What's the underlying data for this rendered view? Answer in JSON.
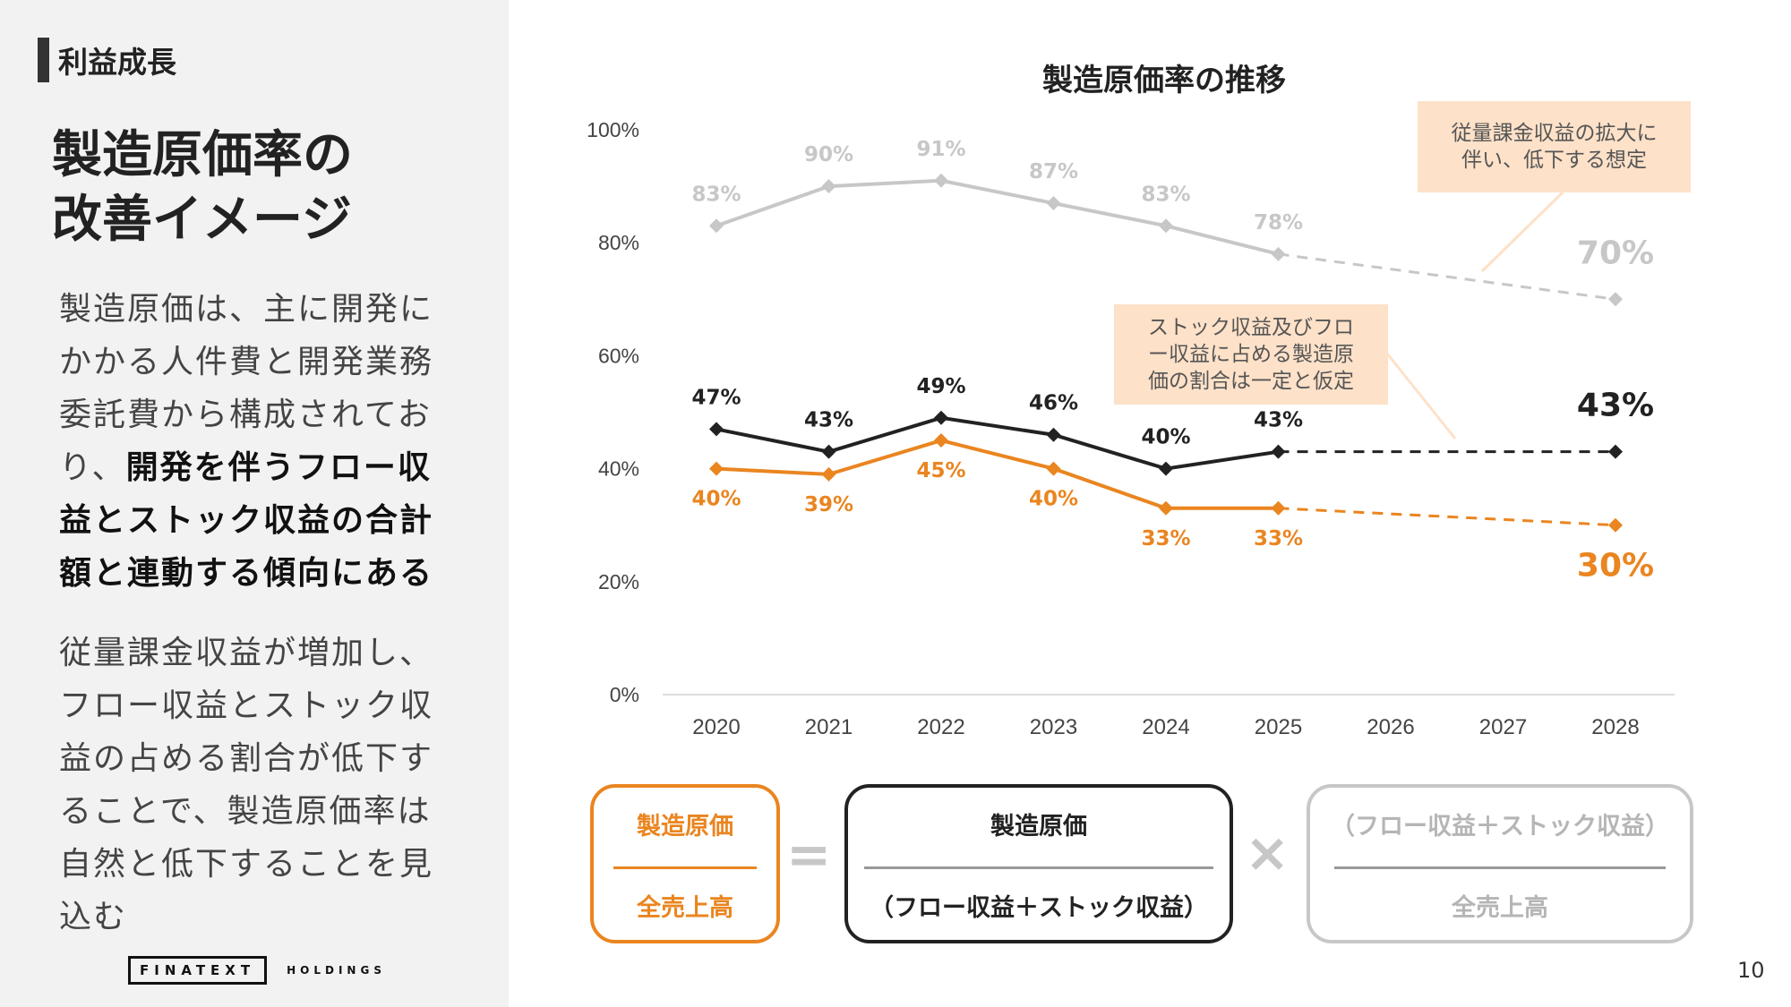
{
  "section_tag": "利益成長",
  "page_title": [
    "製造原価率の",
    "改善イメージ"
  ],
  "paragraph1": {
    "lines": [
      "製造原価は、主に開発に",
      "かかる人件費と開発業務",
      "委託費から構成されてお"
    ],
    "line4_plain": "り、",
    "line4_bold": "開発を伴うフロー収",
    "bold_lines": [
      "益とストック収益の合計",
      "額と連動する傾向にある"
    ]
  },
  "paragraph2": [
    "従量課金収益が増加し、",
    "フロー収益とストック収",
    "益の占める割合が低下す",
    "ることで、製造原価率は",
    "自然と低下することを見",
    "込む"
  ],
  "logo": {
    "main": "FINATEXT",
    "sub": "HOLDINGS"
  },
  "page_number": "10",
  "colors": {
    "gray": "#c7c7c7",
    "black": "#222222",
    "orange": "#ea8520",
    "callout_bg": "#fde1c8",
    "panel_bg": "#f2f2f2"
  },
  "callouts": {
    "top": [
      "従量課金収益の拡大に",
      "伴い、低下する想定"
    ],
    "middle": [
      "ストック収益及びフロ",
      "ー収益に占める製造原",
      "価の割合は一定と仮定"
    ]
  },
  "formula": {
    "term1": {
      "numerator": "製造原価",
      "denominator": "全売上高"
    },
    "equals": "=",
    "term2": {
      "numerator": "製造原価",
      "denominator": "（フロー収益＋ストック収益）"
    },
    "times": "×",
    "term3": {
      "numerator": "（フロー収益＋ストック収益）",
      "denominator": "全売上高"
    }
  },
  "chart_data": {
    "type": "line",
    "title": "製造原価率の推移",
    "categories": [
      "2020",
      "2021",
      "2022",
      "2023",
      "2024",
      "2025",
      "2026",
      "2027",
      "2028"
    ],
    "ylim": [
      0,
      100
    ],
    "yticks": [
      0,
      20,
      40,
      60,
      80,
      100
    ],
    "ytick_labels": [
      "0%",
      "20%",
      "40%",
      "60%",
      "80%",
      "100%"
    ],
    "xlabel": "",
    "ylabel": "",
    "forecast_from_index": 5,
    "series": [
      {
        "name": "gray",
        "color": "#c7c7c7",
        "values": [
          83,
          90,
          91,
          87,
          83,
          78,
          null,
          null,
          70
        ],
        "labels": [
          "83%",
          "90%",
          "91%",
          "87%",
          "83%",
          "78%",
          "",
          "",
          "70%"
        ]
      },
      {
        "name": "black",
        "color": "#222222",
        "values": [
          47,
          43,
          49,
          46,
          40,
          43,
          null,
          null,
          43
        ],
        "labels": [
          "47%",
          "43%",
          "49%",
          "46%",
          "40%",
          "43%",
          "",
          "",
          "43%"
        ]
      },
      {
        "name": "orange",
        "color": "#ea8520",
        "values": [
          40,
          39,
          45,
          40,
          33,
          33,
          null,
          null,
          30
        ],
        "labels": [
          "40%",
          "39%",
          "45%",
          "40%",
          "33%",
          "33%",
          "",
          "",
          "30%"
        ]
      }
    ]
  }
}
